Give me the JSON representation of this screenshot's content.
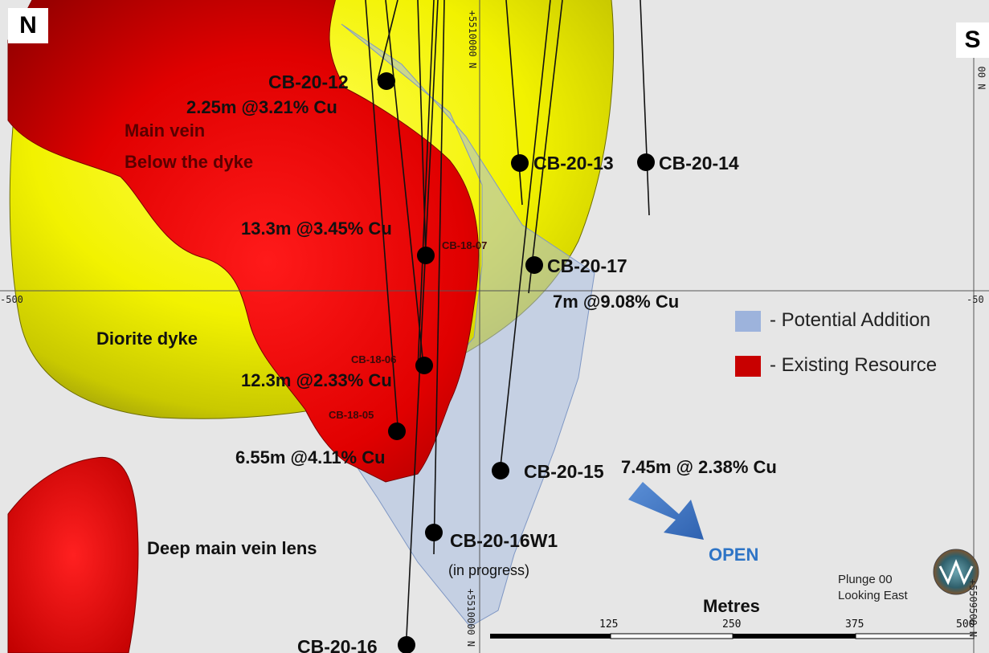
{
  "orientation": {
    "left": "N",
    "right": "S"
  },
  "coordinates": {
    "northing_top": "+5510000 N",
    "northing_bottom": "+5510000 N",
    "elevation_left": "-500",
    "elevation_right": "-50",
    "right_top": "00 N",
    "right_bottom": "+5509500 N"
  },
  "units": {
    "main_vein_line1": "Main vein",
    "main_vein_line2": "Below the dyke",
    "diorite": "Diorite dyke",
    "deep_lens": "Deep main vein lens"
  },
  "holes": {
    "cb2012": "CB-20-12",
    "cb2013": "CB-20-13",
    "cb2014": "CB-20-14",
    "cb1807": "CB-18-07",
    "cb2017": "CB-20-17",
    "cb1806": "CB-18-06",
    "cb1805": "CB-18-05",
    "cb2015": "CB-20-15",
    "cb2016w1": "CB-20-16W1",
    "cb2016w1_note": "(in progress)",
    "cb2016": "CB-20-16"
  },
  "assays": {
    "a2012": "2.25m @3.21% Cu",
    "a1807": "13.3m @3.45% Cu",
    "a2017": "7m @9.08% Cu",
    "a1806": "12.3m @2.33% Cu",
    "a1805": "6.55m @4.11% Cu",
    "a2015": "7.45m @ 2.38% Cu"
  },
  "legend": {
    "potential": "- Potential Addition",
    "potential_color": "#9db3dc",
    "existing": "- Existing Resource",
    "existing_color": "#c80000"
  },
  "open_label": "OPEN",
  "open_color": "#2e74c6",
  "view": {
    "plunge": "Plunge 00",
    "looking": "Looking East"
  },
  "scale": {
    "title": "Metres",
    "ticks": [
      "125",
      "250",
      "375",
      "500"
    ]
  }
}
